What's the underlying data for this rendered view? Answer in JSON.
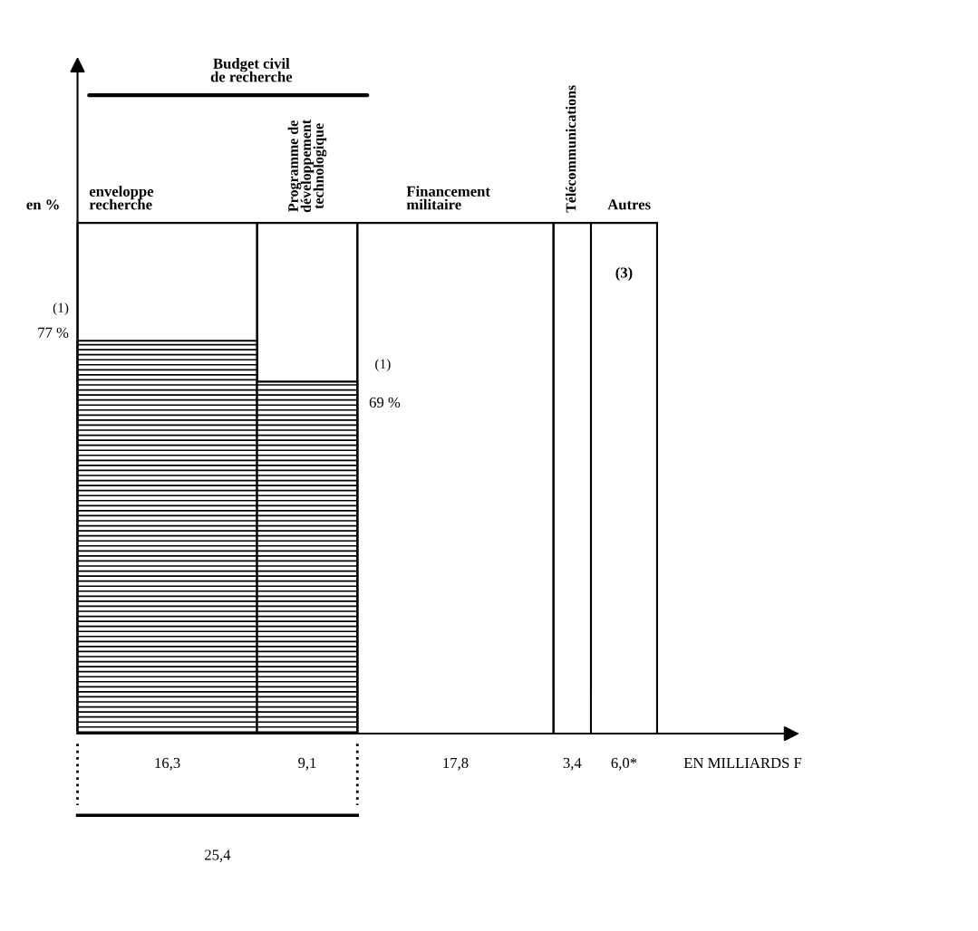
{
  "chart_data": {
    "type": "other",
    "xlabel": "EN MILLIARDS F",
    "ylabel": "en %",
    "categories": [
      "enveloppe\nrecherche",
      "Programme de\ndéveloppement\ntechnologique",
      "Financement\nmilitaire",
      "Télécommunications",
      "Autres"
    ],
    "series": [
      {
        "values": [
          16.3,
          9.1,
          17.8,
          3.4,
          6.0
        ],
        "value_labels": [
          "16,3",
          "9,1",
          "17,8",
          "3,4",
          "6,0*"
        ]
      },
      {
        "color": "#000000",
        "values": [
          77,
          69,
          null,
          null,
          null
        ],
        "value_labels": [
          "77 %",
          "69 %",
          null,
          null,
          null
        ]
      }
    ],
    "annotations": [
      "Budget civil\nde recherche",
      "(1)",
      "(1)",
      "(3)",
      "25,4"
    ]
  }
}
